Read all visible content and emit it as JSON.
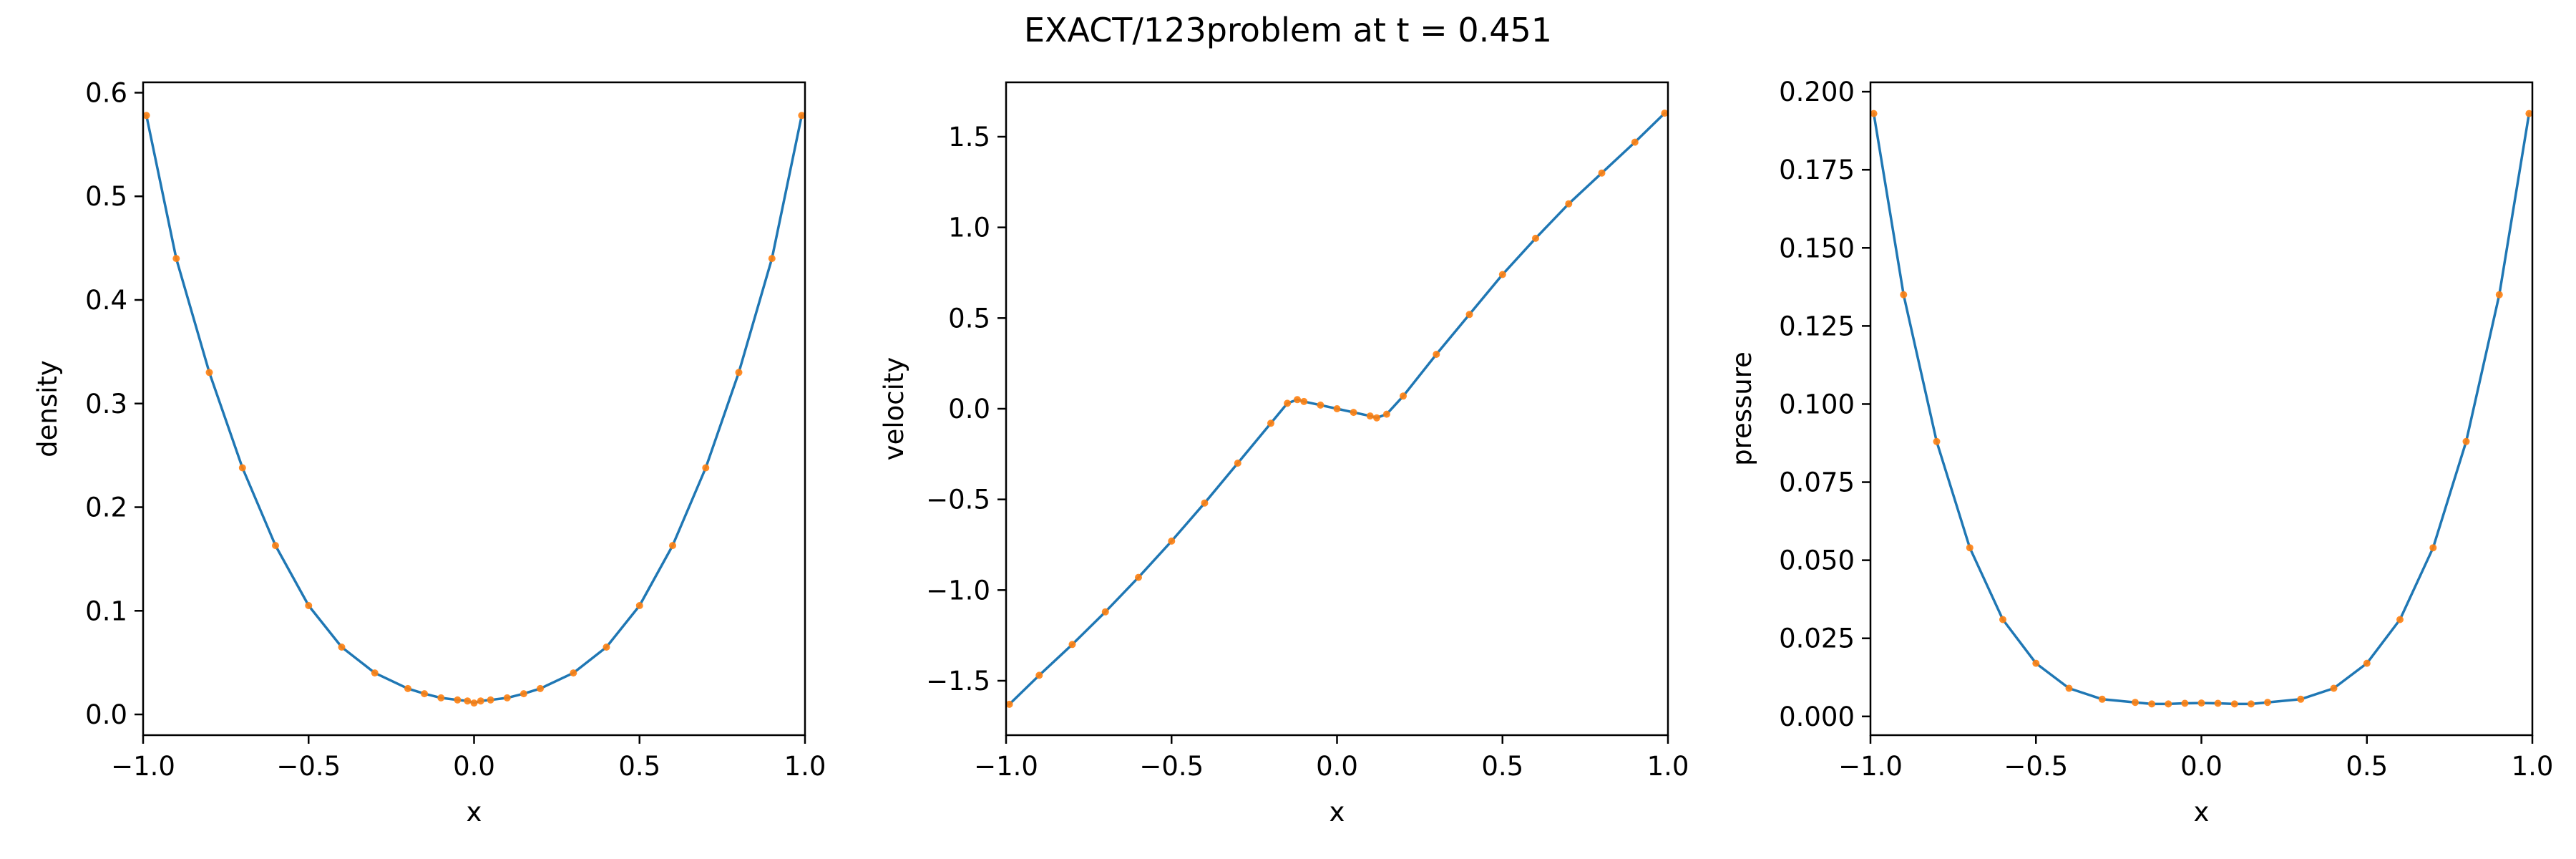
{
  "figure": {
    "suptitle": "EXACT/123problem at t = 0.451"
  },
  "colors": {
    "exact_line": "#1f77b4",
    "sample_markers": "#ff7f0e",
    "axes": "#000000",
    "background": "#ffffff"
  },
  "chart_data": [
    {
      "type": "line",
      "title": "",
      "xlabel": "x",
      "ylabel": "density",
      "xlim": [
        -1.0,
        1.0
      ],
      "ylim": [
        -0.02,
        0.61
      ],
      "xticks": [
        -1.0,
        -0.5,
        0.0,
        0.5,
        1.0
      ],
      "xtick_labels": [
        "−1.0",
        "−0.5",
        "0.0",
        "0.5",
        "1.0"
      ],
      "yticks": [
        0.0,
        0.1,
        0.2,
        0.3,
        0.4,
        0.5,
        0.6
      ],
      "ytick_labels": [
        "0.0",
        "0.1",
        "0.2",
        "0.3",
        "0.4",
        "0.5",
        "0.6"
      ],
      "grid": false,
      "legend": null,
      "series": [
        {
          "style": "line",
          "color": "#1f77b4",
          "x": [
            -0.99,
            -0.9,
            -0.8,
            -0.7,
            -0.6,
            -0.5,
            -0.4,
            -0.3,
            -0.2,
            -0.15,
            -0.1,
            -0.05,
            -0.02,
            0.0,
            0.02,
            0.05,
            0.1,
            0.15,
            0.2,
            0.3,
            0.4,
            0.5,
            0.6,
            0.7,
            0.8,
            0.9,
            0.99
          ],
          "y": [
            0.578,
            0.44,
            0.33,
            0.238,
            0.163,
            0.105,
            0.065,
            0.04,
            0.025,
            0.02,
            0.016,
            0.014,
            0.013,
            0.011,
            0.013,
            0.014,
            0.016,
            0.02,
            0.025,
            0.04,
            0.065,
            0.105,
            0.163,
            0.238,
            0.33,
            0.44,
            0.578
          ]
        },
        {
          "style": "markers",
          "color": "#ff7f0e",
          "x": [
            -0.99,
            -0.9,
            -0.8,
            -0.7,
            -0.6,
            -0.5,
            -0.4,
            -0.3,
            -0.2,
            -0.15,
            -0.1,
            -0.05,
            -0.02,
            0.0,
            0.02,
            0.05,
            0.1,
            0.15,
            0.2,
            0.3,
            0.4,
            0.5,
            0.6,
            0.7,
            0.8,
            0.9,
            0.99
          ],
          "y": [
            0.578,
            0.44,
            0.33,
            0.238,
            0.163,
            0.105,
            0.065,
            0.04,
            0.025,
            0.02,
            0.016,
            0.014,
            0.013,
            0.011,
            0.013,
            0.014,
            0.016,
            0.02,
            0.025,
            0.04,
            0.065,
            0.105,
            0.163,
            0.238,
            0.33,
            0.44,
            0.578
          ]
        }
      ]
    },
    {
      "type": "line",
      "title": "",
      "xlabel": "x",
      "ylabel": "velocity",
      "xlim": [
        -1.0,
        1.0
      ],
      "ylim": [
        -1.8,
        1.8
      ],
      "xticks": [
        -1.0,
        -0.5,
        0.0,
        0.5,
        1.0
      ],
      "xtick_labels": [
        "−1.0",
        "−0.5",
        "0.0",
        "0.5",
        "1.0"
      ],
      "yticks": [
        -1.5,
        -1.0,
        -0.5,
        0.0,
        0.5,
        1.0,
        1.5
      ],
      "ytick_labels": [
        "−1.5",
        "−1.0",
        "−0.5",
        "0.0",
        "0.5",
        "1.0",
        "1.5"
      ],
      "grid": false,
      "legend": null,
      "series": [
        {
          "style": "line",
          "color": "#1f77b4",
          "x": [
            -0.99,
            -0.9,
            -0.8,
            -0.7,
            -0.6,
            -0.5,
            -0.4,
            -0.3,
            -0.2,
            -0.15,
            -0.12,
            -0.1,
            -0.05,
            0.0,
            0.05,
            0.1,
            0.12,
            0.15,
            0.2,
            0.3,
            0.4,
            0.5,
            0.6,
            0.7,
            0.8,
            0.9,
            0.99
          ],
          "y": [
            -1.63,
            -1.47,
            -1.3,
            -1.12,
            -0.93,
            -0.73,
            -0.52,
            -0.3,
            -0.08,
            0.03,
            0.05,
            0.04,
            0.02,
            0.0,
            -0.02,
            -0.04,
            -0.05,
            -0.03,
            0.07,
            0.3,
            0.52,
            0.74,
            0.94,
            1.13,
            1.3,
            1.47,
            1.63
          ]
        },
        {
          "style": "markers",
          "color": "#ff7f0e",
          "x": [
            -0.99,
            -0.9,
            -0.8,
            -0.7,
            -0.6,
            -0.5,
            -0.4,
            -0.3,
            -0.2,
            -0.15,
            -0.12,
            -0.1,
            -0.05,
            0.0,
            0.05,
            0.1,
            0.12,
            0.15,
            0.2,
            0.3,
            0.4,
            0.5,
            0.6,
            0.7,
            0.8,
            0.9,
            0.99
          ],
          "y": [
            -1.63,
            -1.47,
            -1.3,
            -1.12,
            -0.93,
            -0.73,
            -0.52,
            -0.3,
            -0.08,
            0.03,
            0.05,
            0.04,
            0.02,
            0.0,
            -0.02,
            -0.04,
            -0.05,
            -0.03,
            0.07,
            0.3,
            0.52,
            0.74,
            0.94,
            1.13,
            1.3,
            1.47,
            1.63
          ]
        }
      ]
    },
    {
      "type": "line",
      "title": "",
      "xlabel": "x",
      "ylabel": "pressure",
      "xlim": [
        -1.0,
        1.0
      ],
      "ylim": [
        -0.006,
        0.203
      ],
      "xticks": [
        -1.0,
        -0.5,
        0.0,
        0.5,
        1.0
      ],
      "xtick_labels": [
        "−1.0",
        "−0.5",
        "0.0",
        "0.5",
        "1.0"
      ],
      "yticks": [
        0.0,
        0.025,
        0.05,
        0.075,
        0.1,
        0.125,
        0.15,
        0.175,
        0.2
      ],
      "ytick_labels": [
        "0.000",
        "0.025",
        "0.050",
        "0.075",
        "0.100",
        "0.125",
        "0.150",
        "0.175",
        "0.200"
      ],
      "grid": false,
      "legend": null,
      "series": [
        {
          "style": "line",
          "color": "#1f77b4",
          "x": [
            -0.99,
            -0.9,
            -0.8,
            -0.7,
            -0.6,
            -0.5,
            -0.4,
            -0.3,
            -0.2,
            -0.15,
            -0.1,
            -0.05,
            0.0,
            0.05,
            0.1,
            0.15,
            0.2,
            0.3,
            0.4,
            0.5,
            0.6,
            0.7,
            0.8,
            0.9,
            0.99
          ],
          "y": [
            0.193,
            0.135,
            0.088,
            0.054,
            0.031,
            0.017,
            0.009,
            0.0055,
            0.0045,
            0.004,
            0.004,
            0.0042,
            0.0043,
            0.0042,
            0.004,
            0.004,
            0.0045,
            0.0055,
            0.009,
            0.017,
            0.031,
            0.054,
            0.088,
            0.135,
            0.193
          ]
        },
        {
          "style": "markers",
          "color": "#ff7f0e",
          "x": [
            -0.99,
            -0.9,
            -0.8,
            -0.7,
            -0.6,
            -0.5,
            -0.4,
            -0.3,
            -0.2,
            -0.15,
            -0.1,
            -0.05,
            0.0,
            0.05,
            0.1,
            0.15,
            0.2,
            0.3,
            0.4,
            0.5,
            0.6,
            0.7,
            0.8,
            0.9,
            0.99
          ],
          "y": [
            0.193,
            0.135,
            0.088,
            0.054,
            0.031,
            0.017,
            0.009,
            0.0055,
            0.0045,
            0.004,
            0.004,
            0.0042,
            0.0043,
            0.0042,
            0.004,
            0.004,
            0.0045,
            0.0055,
            0.009,
            0.017,
            0.031,
            0.054,
            0.088,
            0.135,
            0.193
          ]
        }
      ]
    }
  ]
}
